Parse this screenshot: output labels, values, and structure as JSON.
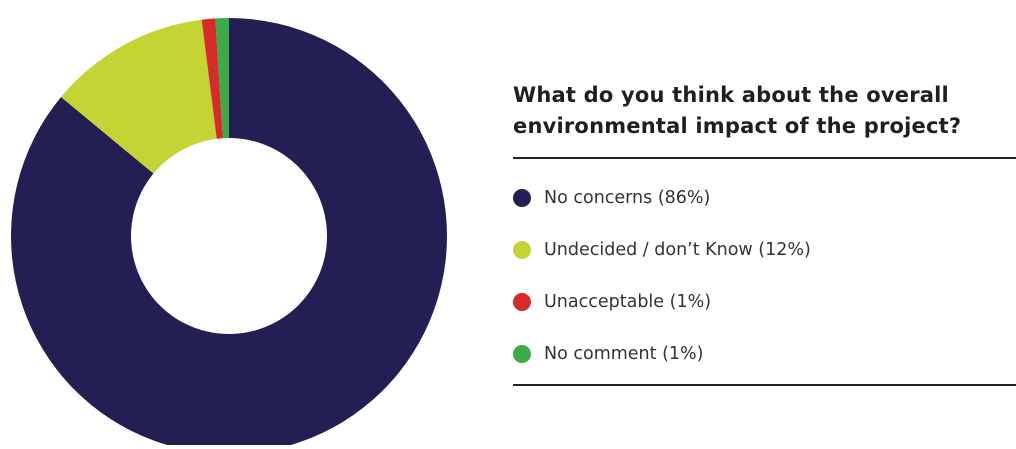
{
  "chart_data": {
    "type": "pie",
    "title": "What do you think about the overall environmental impact of the project?",
    "categories": [
      "No concerns",
      "Undecided / don’t Know",
      "Unacceptable",
      "No comment"
    ],
    "values": [
      86,
      12,
      1,
      1
    ],
    "unit": "%",
    "colors": [
      "#231f54",
      "#c5d435",
      "#d62b2b",
      "#3daa48"
    ],
    "legend": [
      {
        "label": "No concerns (86%)",
        "color": "#231f54",
        "value": 86
      },
      {
        "label": "Undecided / don’t Know (12%)",
        "color": "#c5d435",
        "value": 12
      },
      {
        "label": "Unacceptable (1%)",
        "color": "#d62b2b",
        "value": 1
      },
      {
        "label": "No comment (1%)",
        "color": "#3daa48",
        "value": 1
      }
    ],
    "legend_position": "right",
    "donut": true,
    "start_angle": "top, clockwise"
  }
}
